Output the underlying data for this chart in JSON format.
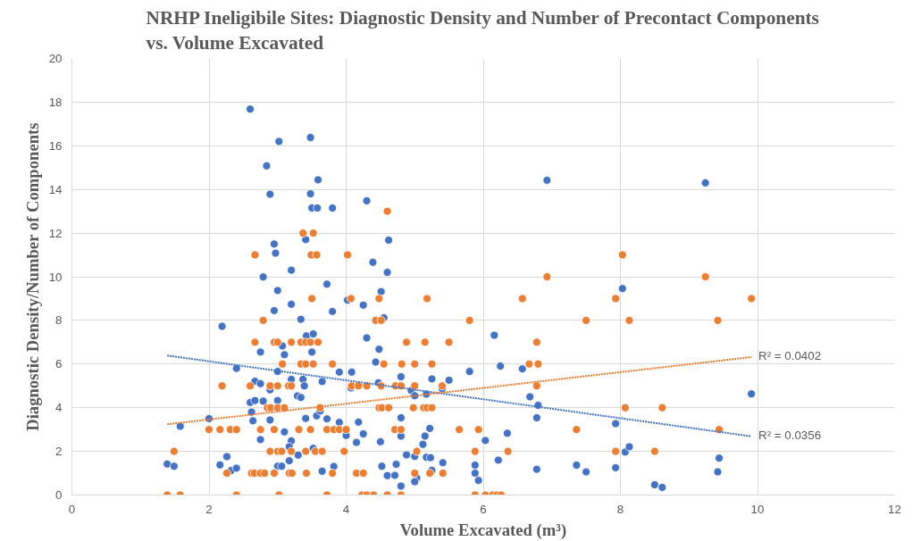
{
  "chart_data": {
    "type": "scatter",
    "title": "NRHP Ineligibile Sites: Diagnostic Density and Number of Precontact Components\nvs. Volume Excavated",
    "xlabel": "Volume Excavated (m³)",
    "ylabel": "Diagnostic Density/Number of Components",
    "xlim": [
      0,
      12
    ],
    "xticks": [
      0,
      2,
      4,
      6,
      8,
      10,
      12
    ],
    "ylim": [
      0,
      20
    ],
    "yticks": [
      0,
      2,
      4,
      6,
      8,
      10,
      12,
      14,
      16,
      18,
      20
    ],
    "grid": true,
    "marker": "circle",
    "series": [
      {
        "color": "#4472c4",
        "x": [
          2.6,
          3.02,
          3.48,
          2.84,
          3.59,
          2.89,
          3.48,
          3.5,
          3.58,
          3.8,
          4.3,
          3.41,
          2.95,
          2.97,
          4.39,
          2.79,
          3.2,
          3.72,
          3.0,
          3.2,
          2.95,
          3.8,
          4.02,
          4.25,
          2.19,
          3.34,
          4.3,
          3.42,
          3.52,
          3.07,
          2.75,
          3.1,
          3.5,
          2.4,
          3.0,
          3.9,
          4.08,
          3.2,
          3.37,
          3.65,
          2.67,
          2.75,
          3.39,
          2.89,
          4.07,
          3.29,
          3.34,
          2.6,
          2.67,
          2.79,
          3.0,
          2.62,
          3.57,
          3.62,
          1.58,
          2.0,
          2.64,
          2.89,
          3.41,
          3.72,
          3.9,
          4.18,
          3.1,
          4.0,
          4.25,
          2.75,
          3.2,
          3.17,
          4.15,
          3.52,
          3.3,
          2.26,
          1.39,
          1.49,
          2.16,
          2.32,
          2.4,
          3.17,
          3.0,
          3.06,
          3.65,
          3.82,
          2.95,
          4.51,
          4.55,
          6.16,
          4.48,
          4.43,
          6.25,
          6.57,
          5.8,
          4.8,
          5.25,
          5.5,
          4.47,
          4.95,
          5.0,
          5.17,
          5.4,
          6.68,
          6.8,
          6.78,
          7.93,
          4.8,
          5.22,
          4.8,
          5.15,
          6.35,
          6.03,
          4.5,
          5.12,
          4.88,
          5.0,
          5.17,
          5.23,
          4.52,
          4.73,
          5.41,
          5.88,
          6.22,
          6.78,
          7.36,
          7.5,
          7.93,
          5.25,
          4.6,
          4.71,
          5.03,
          5.0,
          5.88,
          5.93,
          4.8,
          4.62,
          4.6,
          6.93,
          9.24,
          8.03,
          9.91,
          8.07,
          8.13,
          9.44,
          9.42,
          8.5,
          8.61
        ],
        "values": [
          17.68,
          16.2,
          16.38,
          15.08,
          14.44,
          13.78,
          13.8,
          13.15,
          13.15,
          13.15,
          13.48,
          11.7,
          11.5,
          11.08,
          10.66,
          9.99,
          10.3,
          9.66,
          9.37,
          8.74,
          8.45,
          8.41,
          8.93,
          8.7,
          7.73,
          8.05,
          7.2,
          7.29,
          7.38,
          6.83,
          6.55,
          6.43,
          6.55,
          5.8,
          5.66,
          5.63,
          5.63,
          5.3,
          5.3,
          5.2,
          5.21,
          5.1,
          5.0,
          4.82,
          4.91,
          4.54,
          4.47,
          4.24,
          4.33,
          4.3,
          4.33,
          3.8,
          3.63,
          3.85,
          3.15,
          3.5,
          3.4,
          3.44,
          3.51,
          3.49,
          3.33,
          3.34,
          2.89,
          2.73,
          2.8,
          2.54,
          2.48,
          2.21,
          2.41,
          2.14,
          1.83,
          1.76,
          1.42,
          1.32,
          1.38,
          1.12,
          1.23,
          1.57,
          1.32,
          1.32,
          1.09,
          1.31,
          1.03,
          9.32,
          8.12,
          7.32,
          6.68,
          6.09,
          5.91,
          5.78,
          5.66,
          5.42,
          5.32,
          5.26,
          5.14,
          4.79,
          4.55,
          4.62,
          4.87,
          4.5,
          4.11,
          3.54,
          3.27,
          3.54,
          3.05,
          2.7,
          2.7,
          2.83,
          2.5,
          2.44,
          2.32,
          1.84,
          1.77,
          1.73,
          1.71,
          1.32,
          1.41,
          1.48,
          1.37,
          1.6,
          1.18,
          1.37,
          1.06,
          1.25,
          1.13,
          0.89,
          0.9,
          0.78,
          0.61,
          1.0,
          0.67,
          0.41,
          11.68,
          10.2,
          14.42,
          14.3,
          9.46,
          4.63,
          1.97,
          2.21,
          1.69,
          1.06,
          0.47,
          0.35
        ]
      },
      {
        "color": "#ed7d31",
        "x": [
          3.37,
          3.52,
          2.67,
          3.49,
          3.57,
          4.02,
          3.5,
          4.07,
          2.79,
          2.67,
          2.95,
          3.0,
          3.2,
          3.34,
          3.41,
          3.48,
          3.59,
          3.07,
          3.34,
          3.41,
          3.52,
          3.8,
          2.19,
          2.6,
          2.89,
          3.0,
          3.16,
          3.2,
          4.08,
          4.18,
          4.3,
          2.85,
          2.9,
          3.0,
          3.1,
          3.62,
          2.0,
          2.16,
          2.31,
          2.4,
          2.75,
          2.95,
          3.31,
          3.48,
          3.72,
          3.82,
          3.9,
          4.0,
          1.49,
          2.89,
          3.0,
          3.06,
          3.2,
          3.41,
          3.55,
          3.65,
          3.97,
          2.26,
          2.62,
          2.66,
          2.75,
          2.81,
          2.95,
          3.17,
          3.21,
          3.42,
          3.8,
          4.15,
          4.25,
          1.39,
          1.58,
          2.4,
          3.02,
          3.72,
          4.48,
          5.18,
          4.43,
          4.51,
          5.8,
          6.57,
          7.93,
          7.5,
          4.88,
          5.15,
          5.5,
          6.78,
          4.55,
          4.81,
          5.0,
          5.25,
          6.67,
          6.8,
          4.51,
          4.72,
          4.8,
          5.0,
          5.4,
          6.78,
          4.48,
          4.52,
          4.62,
          4.98,
          5.13,
          5.18,
          5.25,
          4.71,
          4.8,
          5.65,
          5.93,
          7.36,
          5.03,
          5.88,
          6.36,
          7.93,
          5.0,
          5.22,
          5.41,
          4.23,
          4.3,
          4.4,
          4.6,
          4.8,
          5.88,
          6.03,
          6.14,
          6.2,
          6.26,
          4.6,
          6.93,
          8.03,
          9.24,
          7.93,
          9.91,
          8.13,
          9.42,
          8.07,
          8.61,
          9.44,
          7.93,
          8.5
        ],
        "values": [
          12,
          12,
          11,
          11,
          11,
          11,
          9,
          9,
          8,
          7,
          7,
          7,
          7,
          7,
          7,
          7,
          7,
          6,
          6,
          6,
          6,
          6,
          5,
          5,
          5,
          5,
          5,
          5,
          5,
          5,
          5,
          4,
          4,
          4,
          4,
          4,
          3,
          3,
          3,
          3,
          3,
          3,
          3,
          3,
          3,
          3,
          3,
          3,
          2,
          2,
          2,
          2,
          2,
          2,
          2,
          2,
          2,
          1,
          1,
          1,
          1,
          1,
          1,
          1,
          1,
          1,
          1,
          1,
          1,
          0,
          0,
          0,
          0,
          0,
          9,
          9,
          8,
          8,
          8,
          9,
          9,
          8,
          7,
          7,
          7,
          7,
          6,
          6,
          6,
          6,
          6,
          6,
          5,
          5,
          5,
          5,
          5,
          5,
          4,
          4,
          4,
          4,
          4,
          4,
          4,
          3,
          3,
          3,
          3,
          3,
          2,
          2,
          2,
          2,
          1,
          1,
          1,
          0,
          0,
          0,
          0,
          0,
          0,
          0,
          0,
          0,
          0,
          13,
          10,
          11,
          10,
          9,
          9,
          8,
          8,
          4,
          4,
          3,
          2,
          2
        ]
      },
      {
        "type": "line",
        "color": "#4472c4",
        "line_style": "dotted",
        "marker": "none",
        "x": [
          1.39,
          9.91
        ],
        "values": [
          6.39,
          2.69
        ]
      },
      {
        "type": "line",
        "color": "#ed7d31",
        "line_style": "dotted",
        "marker": "none",
        "x": [
          1.39,
          9.91
        ],
        "values": [
          3.24,
          6.32
        ]
      }
    ],
    "annotations": [
      {
        "text": "R² = 0.0402",
        "x": 9.91,
        "y": 6.32
      },
      {
        "text": "R² = 0.0356",
        "x": 9.91,
        "y": 2.69
      }
    ]
  }
}
